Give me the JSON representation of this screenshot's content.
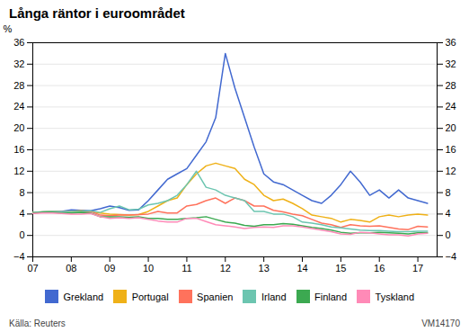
{
  "chart_data": {
    "type": "line",
    "title": "Långa räntor i euroområdet",
    "ylabel": "%",
    "caption": "Källa: Reuters",
    "annotations": [
      "VM14170"
    ],
    "xlim": [
      2007.0,
      2017.5
    ],
    "xticks": [
      {
        "value": 2007,
        "label": "07"
      },
      {
        "value": 2008,
        "label": "08"
      },
      {
        "value": 2009,
        "label": "09"
      },
      {
        "value": 2010,
        "label": "10"
      },
      {
        "value": 2011,
        "label": "11"
      },
      {
        "value": 2012,
        "label": "12"
      },
      {
        "value": 2013,
        "label": "13"
      },
      {
        "value": 2014,
        "label": "14"
      },
      {
        "value": 2015,
        "label": "15"
      },
      {
        "value": 2016,
        "label": "16"
      },
      {
        "value": 2017,
        "label": "17"
      }
    ],
    "ylim": [
      -4,
      36
    ],
    "yticks": [
      -4,
      0,
      4,
      8,
      12,
      16,
      20,
      24,
      28,
      32,
      36
    ],
    "grid": true,
    "legend": "bottom",
    "x": [
      2007.0,
      2007.25,
      2007.5,
      2007.75,
      2008.0,
      2008.25,
      2008.5,
      2008.75,
      2009.0,
      2009.25,
      2009.5,
      2009.75,
      2010.0,
      2010.25,
      2010.5,
      2010.75,
      2011.0,
      2011.25,
      2011.5,
      2011.75,
      2012.0,
      2012.25,
      2012.5,
      2012.75,
      2013.0,
      2013.25,
      2013.5,
      2013.75,
      2014.0,
      2014.25,
      2014.5,
      2014.75,
      2015.0,
      2015.25,
      2015.5,
      2015.75,
      2016.0,
      2016.25,
      2016.5,
      2016.75,
      2017.0,
      2017.25
    ],
    "series": [
      {
        "name": "Grekland",
        "values": [
          4.2,
          4.4,
          4.5,
          4.5,
          4.8,
          4.7,
          4.6,
          5.0,
          5.5,
          5.2,
          4.7,
          4.8,
          6.5,
          8.5,
          10.5,
          11.5,
          12.5,
          15.0,
          17.5,
          22.0,
          34.0,
          27.5,
          22.0,
          16.5,
          11.5,
          10.0,
          9.5,
          8.5,
          7.5,
          6.5,
          6.0,
          7.5,
          9.5,
          12.0,
          10.0,
          7.5,
          8.5,
          7.0,
          8.5,
          7.0,
          6.5,
          6.0
        ]
      },
      {
        "name": "Portugal",
        "values": [
          4.3,
          4.4,
          4.5,
          4.4,
          4.5,
          4.6,
          4.5,
          4.2,
          4.0,
          3.9,
          3.8,
          3.9,
          4.5,
          5.5,
          6.5,
          7.0,
          9.5,
          11.5,
          13.0,
          13.5,
          13.0,
          12.5,
          10.5,
          9.5,
          7.5,
          6.5,
          6.8,
          6.0,
          5.0,
          3.8,
          3.5,
          3.2,
          2.5,
          3.0,
          2.8,
          2.5,
          3.5,
          3.8,
          3.5,
          3.8,
          4.0,
          3.8
        ]
      },
      {
        "name": "Spanien",
        "values": [
          4.2,
          4.3,
          4.4,
          4.3,
          4.2,
          4.3,
          4.5,
          3.8,
          3.7,
          3.8,
          3.8,
          3.9,
          4.0,
          4.5,
          4.2,
          4.2,
          5.5,
          5.8,
          6.5,
          7.0,
          6.0,
          7.0,
          6.5,
          5.5,
          5.5,
          4.7,
          4.4,
          4.0,
          3.7,
          3.0,
          2.3,
          2.0,
          1.5,
          2.0,
          1.8,
          1.7,
          1.8,
          1.5,
          1.2,
          1.1,
          1.7,
          1.6
        ]
      },
      {
        "name": "Irland",
        "values": [
          4.3,
          4.4,
          4.5,
          4.4,
          4.5,
          4.5,
          4.6,
          4.3,
          5.0,
          5.5,
          4.8,
          4.9,
          5.7,
          6.0,
          6.5,
          7.5,
          9.5,
          12.0,
          9.0,
          8.5,
          7.5,
          7.0,
          6.5,
          4.5,
          4.5,
          4.0,
          4.0,
          3.5,
          2.5,
          2.3,
          2.0,
          1.6,
          1.4,
          1.2,
          1.0,
          0.9,
          0.9,
          0.8,
          0.7,
          0.7,
          0.8,
          0.8
        ]
      },
      {
        "name": "Finland",
        "values": [
          4.2,
          4.3,
          4.3,
          4.2,
          4.2,
          4.3,
          4.2,
          3.5,
          3.5,
          3.5,
          3.4,
          3.5,
          3.2,
          3.2,
          3.0,
          3.0,
          3.2,
          3.3,
          3.5,
          3.0,
          2.5,
          2.3,
          1.9,
          1.7,
          2.0,
          2.0,
          2.2,
          2.1,
          1.8,
          1.5,
          1.3,
          1.0,
          0.6,
          0.4,
          0.5,
          0.5,
          0.6,
          0.5,
          0.4,
          0.3,
          0.5,
          0.5
        ]
      },
      {
        "name": "Tyskland",
        "values": [
          4.1,
          4.2,
          4.2,
          4.1,
          4.0,
          4.0,
          4.1,
          3.5,
          3.2,
          3.3,
          3.2,
          3.3,
          3.0,
          2.7,
          2.5,
          2.5,
          3.2,
          3.2,
          2.6,
          2.0,
          1.8,
          1.6,
          1.3,
          1.5,
          1.6,
          1.5,
          1.8,
          1.8,
          1.6,
          1.3,
          1.0,
          0.7,
          0.3,
          0.2,
          0.6,
          0.5,
          0.3,
          0.1,
          0.1,
          -0.1,
          0.3,
          0.4
        ]
      }
    ]
  }
}
